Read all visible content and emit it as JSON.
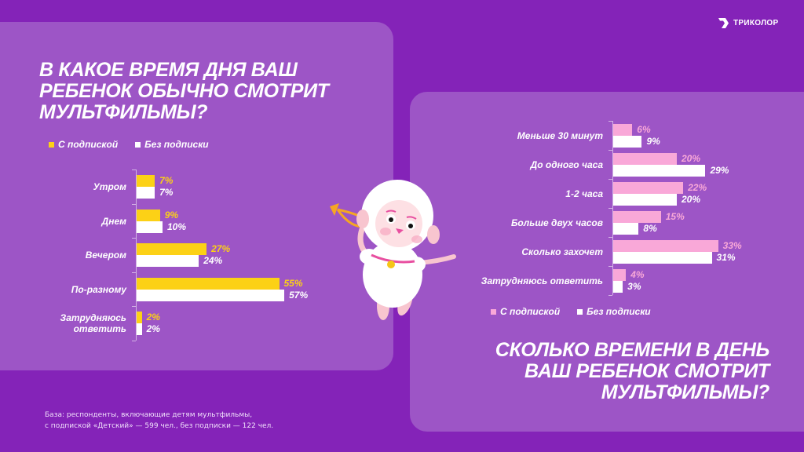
{
  "brand": {
    "logo_text": "ТРИКОЛОР",
    "logo_icon": "tricolor-chevron-icon"
  },
  "colors": {
    "background": "#8423b8",
    "panel": "#9d55c6",
    "subscribed_left": "#fcd116",
    "subscribed_right": "#f9a8d8",
    "unsubscribed": "#ffffff"
  },
  "left": {
    "title_lines": [
      "В КАКОЕ ВРЕМЯ ДНЯ ВАШ",
      "РЕБЕНОК ОБЫЧНО СМОТРИТ",
      "МУЛЬТФИЛЬМЫ?"
    ],
    "legend": [
      {
        "label": "С подпиской",
        "color": "#fcd116"
      },
      {
        "label": "Без подписки",
        "color": "#ffffff"
      }
    ]
  },
  "right": {
    "title_lines": [
      "СКОЛЬКО ВРЕМЕНИ В ДЕНЬ",
      "ВАШ РЕБЕНОК СМОТРИТ",
      "МУЛЬТФИЛЬМЫ?"
    ],
    "legend": [
      {
        "label": "С подпиской",
        "color": "#f9a8d8"
      },
      {
        "label": "Без подписки",
        "color": "#ffffff"
      }
    ]
  },
  "footnote": {
    "line1": "База: респонденты,  включающие детям мультфильмы,",
    "line2": "с подпиской  «Детский» — 599 чел., без подписки  — 122 чел."
  },
  "mascot": {
    "description": "lamb-mascot-with-trumpet"
  },
  "chart_data": [
    {
      "type": "bar",
      "orientation": "horizontal",
      "title": "В какое время дня ваш ребенок обычно смотрит мультфильмы?",
      "categories": [
        "Утром",
        "Днем",
        "Вечером",
        "По-разному",
        "Затрудняюсь ответить"
      ],
      "category_lines": [
        [
          "Утром"
        ],
        [
          "Днем"
        ],
        [
          "Вечером"
        ],
        [
          "По-разному"
        ],
        [
          "Затрудняюсь",
          "ответить"
        ]
      ],
      "series": [
        {
          "name": "С подпиской",
          "color": "#fcd116",
          "values": [
            7,
            9,
            27,
            55,
            2
          ]
        },
        {
          "name": "Без подписки",
          "color": "#ffffff",
          "values": [
            7,
            10,
            24,
            57,
            2
          ]
        }
      ],
      "value_suffix": "%",
      "xlabel": "",
      "ylabel": "",
      "grid": false,
      "legend_position": "top-left"
    },
    {
      "type": "bar",
      "orientation": "horizontal",
      "title": "Сколько времени в день ваш ребенок смотрит мультфильмы?",
      "categories": [
        "Меньше 30 минут",
        "До одного часа",
        "1-2 часа",
        "Больше двух часов",
        "Сколько захочет",
        "Затрудняюсь ответить"
      ],
      "category_lines": [
        [
          "Меньше 30 минут"
        ],
        [
          "До одного часа"
        ],
        [
          "1-2 часа"
        ],
        [
          "Больше двух часов"
        ],
        [
          "Сколько захочет"
        ],
        [
          "Затрудняюсь ответить"
        ]
      ],
      "series": [
        {
          "name": "С подпиской",
          "color": "#f9a8d8",
          "values": [
            6,
            20,
            22,
            15,
            33,
            4
          ]
        },
        {
          "name": "Без подписки",
          "color": "#ffffff",
          "values": [
            9,
            29,
            20,
            8,
            31,
            3
          ]
        }
      ],
      "value_suffix": "%",
      "xlabel": "",
      "ylabel": "",
      "grid": false,
      "legend_position": "bottom"
    }
  ]
}
